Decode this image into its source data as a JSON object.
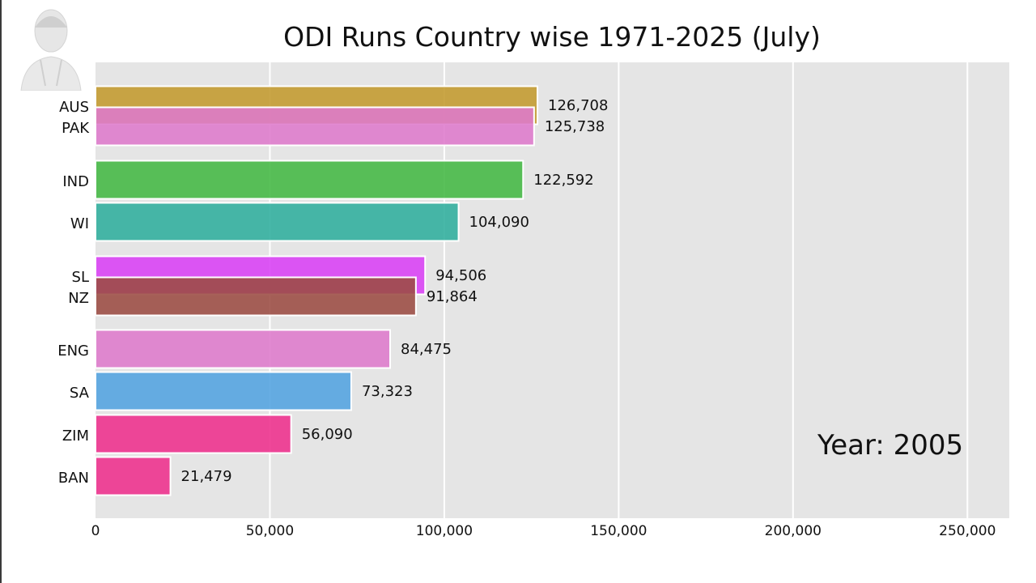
{
  "chart_data": {
    "type": "bar",
    "orientation": "horizontal",
    "title": "ODI Runs Country wise 1971-2025 (July)",
    "annotation": "Year: 2005",
    "xlabel": "",
    "ylabel": "",
    "xlim": [
      0,
      262000
    ],
    "x_ticks": [
      0,
      50000,
      100000,
      150000,
      200000,
      250000
    ],
    "x_tick_labels": [
      "0",
      "50,000",
      "100,000",
      "150,000",
      "200,000",
      "250,000"
    ],
    "grid": true,
    "categories": [
      "AUS",
      "PAK",
      "IND",
      "WI",
      "SL",
      "NZ",
      "ENG",
      "SA",
      "ZIM",
      "BAN"
    ],
    "values": [
      126708,
      125738,
      122592,
      104090,
      94506,
      91864,
      84475,
      73323,
      56090,
      21479
    ],
    "value_labels": [
      "126,708",
      "125,738",
      "122,592",
      "104,090",
      "94,506",
      "91,864",
      "84,475",
      "73,323",
      "56,090",
      "21,479"
    ],
    "colors": [
      "#c39a2d",
      "#de7acc",
      "#43b843",
      "#2fae9d",
      "#d940f5",
      "#9b4b42",
      "#de7acc",
      "#52a3e0",
      "#ee2f8c",
      "#ee2f8c"
    ]
  },
  "logo": {
    "icon": "person-avatar-icon"
  }
}
